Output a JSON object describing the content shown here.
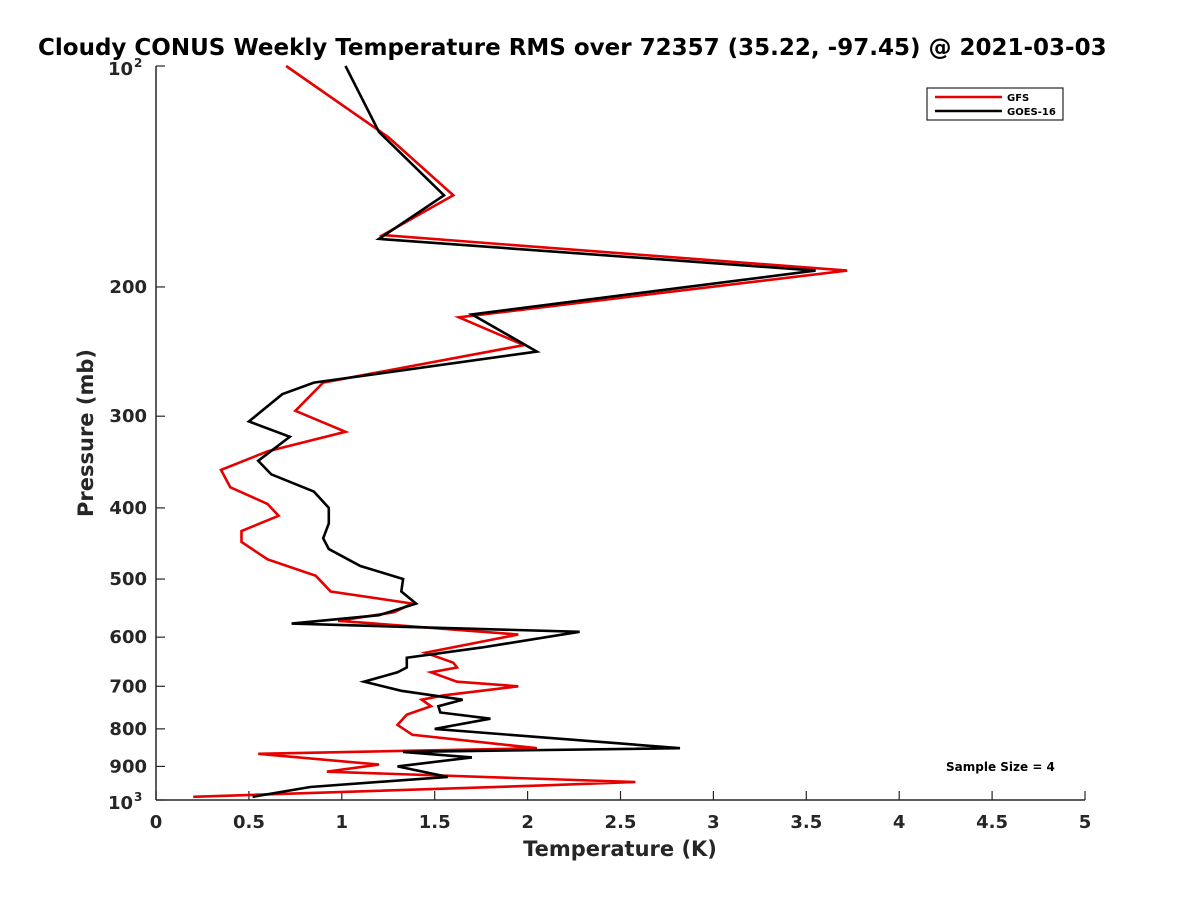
{
  "chart_data": {
    "type": "line",
    "title": "Cloudy CONUS Weekly Temperature RMS over 72357 (35.22, -97.45) @ 2021-03-03",
    "xlabel": "Temperature (K)",
    "ylabel": "Pressure (mb)",
    "xlim": [
      0,
      5
    ],
    "ylim": [
      100,
      1000
    ],
    "y_scale": "log",
    "y_reversed": true,
    "grid": false,
    "legend_position": "top-right",
    "x_ticks": [
      "0",
      "0.5",
      "1",
      "1.5",
      "2",
      "2.5",
      "3",
      "3.5",
      "4",
      "4.5",
      "5"
    ],
    "x_tick_values": [
      0,
      0.5,
      1,
      1.5,
      2,
      2.5,
      3,
      3.5,
      4,
      4.5,
      5
    ],
    "y_ticks": [
      {
        "value": 100,
        "base": "10",
        "exp": "2"
      },
      {
        "value": 200,
        "label": "200"
      },
      {
        "value": 300,
        "label": "300"
      },
      {
        "value": 400,
        "label": "400"
      },
      {
        "value": 500,
        "label": "500"
      },
      {
        "value": 600,
        "label": "600"
      },
      {
        "value": 700,
        "label": "700"
      },
      {
        "value": 800,
        "label": "800"
      },
      {
        "value": 900,
        "label": "900"
      },
      {
        "value": 1000,
        "base": "10",
        "exp": "3"
      }
    ],
    "annotation": "Sample Size = 4",
    "series": [
      {
        "name": "GFS",
        "color": "#e60000",
        "points": [
          [
            0.7,
            100
          ],
          [
            1.25,
            125
          ],
          [
            1.6,
            150
          ],
          [
            1.22,
            170
          ],
          [
            3.72,
            190
          ],
          [
            1.63,
            220
          ],
          [
            1.98,
            240
          ],
          [
            0.9,
            270
          ],
          [
            0.75,
            295
          ],
          [
            1.02,
            315
          ],
          [
            0.6,
            335
          ],
          [
            0.35,
            355
          ],
          [
            0.4,
            375
          ],
          [
            0.6,
            395
          ],
          [
            0.66,
            410
          ],
          [
            0.46,
            430
          ],
          [
            0.46,
            445
          ],
          [
            0.6,
            470
          ],
          [
            0.86,
            495
          ],
          [
            0.94,
            520
          ],
          [
            1.38,
            540
          ],
          [
            1.28,
            555
          ],
          [
            0.98,
            570
          ],
          [
            1.18,
            575
          ],
          [
            1.95,
            595
          ],
          [
            1.45,
            630
          ],
          [
            1.6,
            650
          ],
          [
            1.62,
            660
          ],
          [
            1.48,
            670
          ],
          [
            1.62,
            690
          ],
          [
            1.95,
            700
          ],
          [
            1.55,
            720
          ],
          [
            1.43,
            730
          ],
          [
            1.48,
            745
          ],
          [
            1.35,
            765
          ],
          [
            1.3,
            790
          ],
          [
            1.38,
            815
          ],
          [
            2.05,
            850
          ],
          [
            0.55,
            865
          ],
          [
            1.2,
            895
          ],
          [
            0.92,
            915
          ],
          [
            2.58,
            945
          ],
          [
            2.1,
            955
          ],
          [
            0.2,
            990
          ]
        ]
      },
      {
        "name": "GOES-16",
        "color": "#000000",
        "points": [
          [
            1.02,
            100
          ],
          [
            1.2,
            123
          ],
          [
            1.55,
            150
          ],
          [
            1.2,
            172
          ],
          [
            3.55,
            190
          ],
          [
            1.7,
            218
          ],
          [
            2.05,
            245
          ],
          [
            0.85,
            270
          ],
          [
            0.68,
            280
          ],
          [
            0.5,
            305
          ],
          [
            0.72,
            320
          ],
          [
            0.55,
            345
          ],
          [
            0.62,
            360
          ],
          [
            0.85,
            380
          ],
          [
            0.93,
            400
          ],
          [
            0.93,
            420
          ],
          [
            0.9,
            440
          ],
          [
            0.93,
            455
          ],
          [
            1.1,
            480
          ],
          [
            1.33,
            500
          ],
          [
            1.32,
            520
          ],
          [
            1.4,
            540
          ],
          [
            1.2,
            560
          ],
          [
            0.73,
            575
          ],
          [
            2.28,
            590
          ],
          [
            1.75,
            620
          ],
          [
            1.35,
            640
          ],
          [
            1.35,
            660
          ],
          [
            1.3,
            670
          ],
          [
            1.12,
            690
          ],
          [
            1.32,
            710
          ],
          [
            1.65,
            730
          ],
          [
            1.52,
            745
          ],
          [
            1.53,
            760
          ],
          [
            1.8,
            775
          ],
          [
            1.5,
            800
          ],
          [
            2.82,
            850
          ],
          [
            1.33,
            860
          ],
          [
            1.7,
            875
          ],
          [
            1.3,
            900
          ],
          [
            1.57,
            930
          ],
          [
            0.83,
            960
          ],
          [
            0.52,
            990
          ]
        ]
      }
    ]
  }
}
